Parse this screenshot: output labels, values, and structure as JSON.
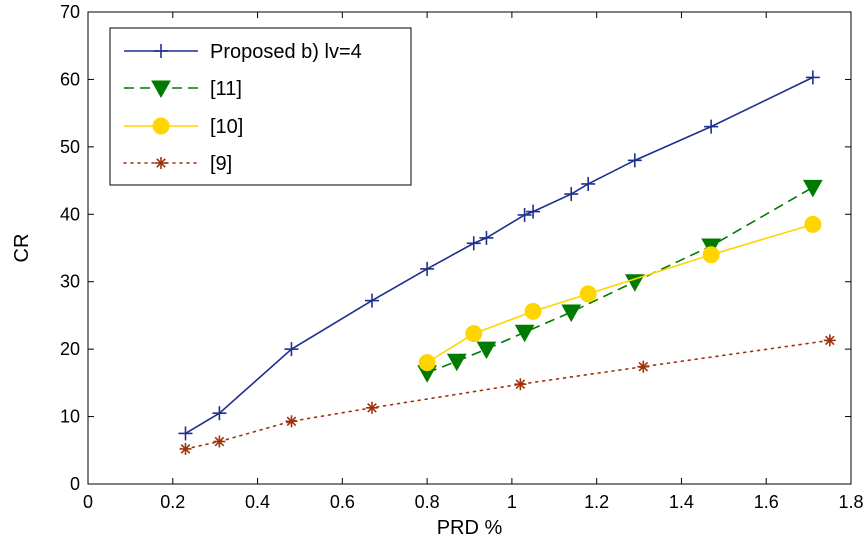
{
  "chart_data": {
    "type": "line",
    "title": "",
    "xlabel": "PRD %",
    "ylabel": "CR",
    "xlim": [
      0,
      1.8
    ],
    "ylim": [
      0,
      70
    ],
    "xticks": [
      0,
      0.2,
      0.4,
      0.6,
      0.8,
      1,
      1.2,
      1.4,
      1.6,
      1.8
    ],
    "xtick_labels": [
      "0",
      "0.2",
      "0.4",
      "0.6",
      "0.8",
      "1",
      "1.2",
      "1.4",
      "1.6",
      "1.8"
    ],
    "yticks": [
      0,
      10,
      20,
      30,
      40,
      50,
      60,
      70
    ],
    "ytick_labels": [
      "0",
      "10",
      "20",
      "30",
      "40",
      "50",
      "60",
      "70"
    ],
    "grid": false,
    "legend_position": "top-left",
    "series": [
      {
        "name": "Proposed b) lv=4",
        "color": "#1f2f8f",
        "line_style": "solid",
        "marker": "plus",
        "x": [
          0.23,
          0.31,
          0.48,
          0.67,
          0.8,
          0.91,
          0.94,
          1.03,
          1.05,
          1.14,
          1.18,
          1.29,
          1.47,
          1.71
        ],
        "y": [
          7.5,
          10.5,
          20,
          27.2,
          31.9,
          35.7,
          36.5,
          39.9,
          40.4,
          43,
          44.5,
          48,
          53,
          60.3
        ]
      },
      {
        "name": "[11]",
        "color": "#007a00",
        "line_style": "dashed",
        "marker": "triangle-down",
        "x": [
          0.8,
          0.87,
          0.94,
          1.03,
          1.14,
          1.29,
          1.47,
          1.71
        ],
        "y": [
          16.5,
          18.2,
          20,
          22.5,
          25.5,
          30,
          35.3,
          44
        ]
      },
      {
        "name": "[10]",
        "color": "#ffd500",
        "line_style": "solid",
        "marker": "circle",
        "x": [
          0.8,
          0.91,
          1.05,
          1.18,
          1.47,
          1.71
        ],
        "y": [
          18,
          22.3,
          25.6,
          28.2,
          34,
          38.5
        ]
      },
      {
        "name": "[9]",
        "color": "#a0320a",
        "line_style": "dotted",
        "marker": "asterisk",
        "x": [
          0.23,
          0.31,
          0.48,
          0.67,
          1.02,
          1.31,
          1.75
        ],
        "y": [
          5.2,
          6.3,
          9.3,
          11.3,
          14.8,
          17.4,
          21.3
        ]
      }
    ]
  }
}
